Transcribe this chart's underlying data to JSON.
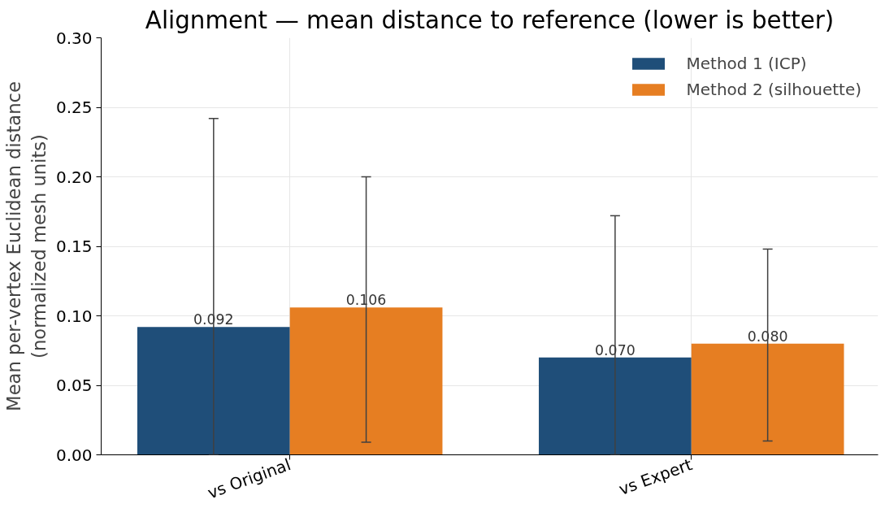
{
  "chart_data": {
    "type": "bar",
    "title": "Alignment — mean distance to reference (lower is better)",
    "ylabel": "Mean per-vertex Euclidean distance\n(normalized mesh units)",
    "categories": [
      "vs Original",
      "vs Expert"
    ],
    "series": [
      {
        "name": "Method 1 (ICP)",
        "color": "#1f4e79",
        "values": [
          0.092,
          0.07
        ],
        "value_labels": [
          "0.092",
          "0.070"
        ],
        "errors": [
          [
            0.0,
            0.242
          ],
          [
            0.0,
            0.172
          ]
        ]
      },
      {
        "name": "Method 2 (silhouette)",
        "color": "#e67e22",
        "values": [
          0.106,
          0.08
        ],
        "value_labels": [
          "0.106",
          "0.080"
        ],
        "errors": [
          [
            0.009,
            0.2
          ],
          [
            0.01,
            0.148
          ]
        ]
      }
    ],
    "ylim": [
      0,
      0.3
    ],
    "yticks": [
      {
        "value": 0,
        "label": "0.00"
      },
      {
        "value": 0.05,
        "label": "0.05"
      },
      {
        "value": 0.1,
        "label": "0.10"
      },
      {
        "value": 0.15,
        "label": "0.15"
      },
      {
        "value": 0.2,
        "label": "0.20"
      },
      {
        "value": 0.25,
        "label": "0.25"
      },
      {
        "value": 0.3,
        "label": "0.30"
      }
    ],
    "grid": true,
    "legend": "top right"
  }
}
